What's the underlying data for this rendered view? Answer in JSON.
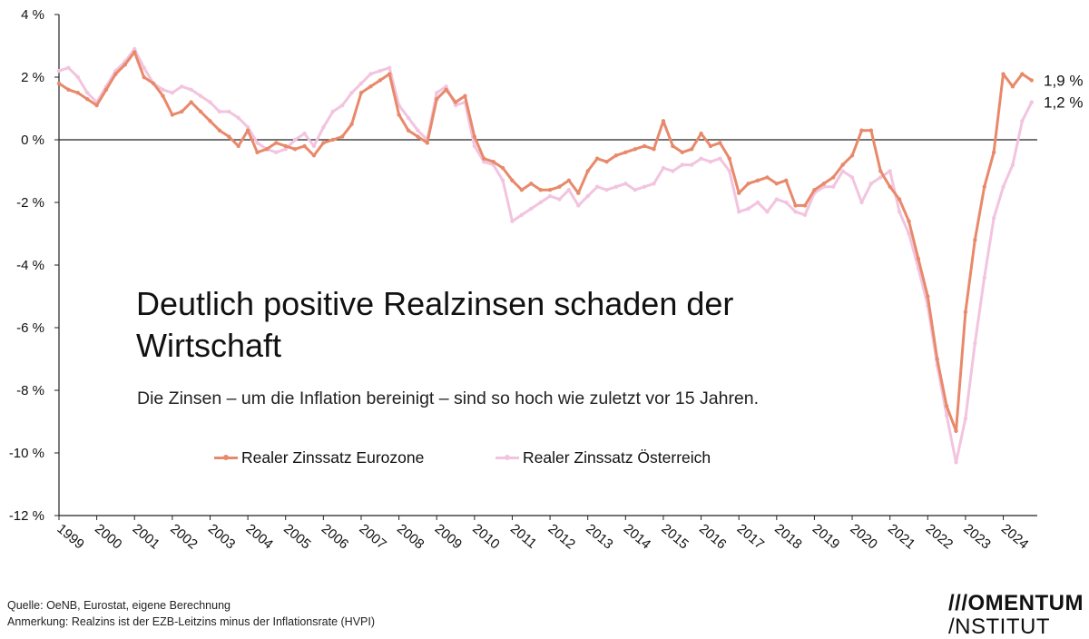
{
  "chart_data": {
    "type": "line",
    "title": "Deutlich positive Realzinsen schaden der Wirtschaft",
    "subtitle": "Die Zinsen – um die Inflation bereinigt – sind so hoch wie zuletzt vor 15 Jahren.",
    "ylim": [
      -12,
      4
    ],
    "yticks": [
      4,
      2,
      0,
      -2,
      -4,
      -6,
      -8,
      -10,
      -12
    ],
    "ytick_labels": [
      "4 %",
      "2 %",
      "0 %",
      "-2 %",
      "-4 %",
      "-6 %",
      "-8 %",
      "-10 %",
      "-12 %"
    ],
    "xlim": [
      1999,
      2024.9
    ],
    "xticks": [
      1999,
      2000,
      2001,
      2002,
      2003,
      2004,
      2005,
      2006,
      2007,
      2008,
      2009,
      2010,
      2011,
      2012,
      2013,
      2014,
      2015,
      2016,
      2017,
      2018,
      2019,
      2020,
      2021,
      2022,
      2023,
      2024
    ],
    "xtick_labels": [
      "1999",
      "2000",
      "2001",
      "2002",
      "2003",
      "2004",
      "2005",
      "2006",
      "2007",
      "2008",
      "2009",
      "2010",
      "2011",
      "2012",
      "2013",
      "2014",
      "2015",
      "2016",
      "2017",
      "2018",
      "2019",
      "2020",
      "2021",
      "2022",
      "2023",
      "2024"
    ],
    "series": [
      {
        "name": "Realer Zinssatz Eurozone",
        "color": "#E8896B",
        "end_label": "1,9 %",
        "x": [
          1999.0,
          1999.25,
          1999.5,
          1999.75,
          2000.0,
          2000.25,
          2000.5,
          2000.75,
          2001.0,
          2001.25,
          2001.5,
          2001.75,
          2002.0,
          2002.25,
          2002.5,
          2002.75,
          2003.0,
          2003.25,
          2003.5,
          2003.75,
          2004.0,
          2004.25,
          2004.5,
          2004.75,
          2005.0,
          2005.25,
          2005.5,
          2005.75,
          2006.0,
          2006.25,
          2006.5,
          2006.75,
          2007.0,
          2007.25,
          2007.5,
          2007.75,
          2008.0,
          2008.25,
          2008.5,
          2008.75,
          2009.0,
          2009.25,
          2009.5,
          2009.75,
          2010.0,
          2010.25,
          2010.5,
          2010.75,
          2011.0,
          2011.25,
          2011.5,
          2011.75,
          2012.0,
          2012.25,
          2012.5,
          2012.75,
          2013.0,
          2013.25,
          2013.5,
          2013.75,
          2014.0,
          2014.25,
          2014.5,
          2014.75,
          2015.0,
          2015.25,
          2015.5,
          2015.75,
          2016.0,
          2016.25,
          2016.5,
          2016.75,
          2017.0,
          2017.25,
          2017.5,
          2017.75,
          2018.0,
          2018.25,
          2018.5,
          2018.75,
          2019.0,
          2019.25,
          2019.5,
          2019.75,
          2020.0,
          2020.25,
          2020.5,
          2020.75,
          2021.0,
          2021.25,
          2021.5,
          2021.75,
          2022.0,
          2022.25,
          2022.5,
          2022.75,
          2023.0,
          2023.25,
          2023.5,
          2023.75,
          2024.0,
          2024.25,
          2024.5,
          2024.75
        ],
        "values": [
          1.8,
          1.6,
          1.5,
          1.3,
          1.1,
          1.6,
          2.1,
          2.4,
          2.8,
          2.0,
          1.8,
          1.4,
          0.8,
          0.9,
          1.2,
          0.9,
          0.6,
          0.3,
          0.1,
          -0.2,
          0.3,
          -0.4,
          -0.3,
          -0.1,
          -0.2,
          -0.3,
          -0.2,
          -0.5,
          -0.1,
          0.0,
          0.1,
          0.5,
          1.5,
          1.7,
          1.9,
          2.1,
          0.8,
          0.3,
          0.1,
          -0.1,
          1.3,
          1.6,
          1.2,
          1.4,
          0.1,
          -0.6,
          -0.7,
          -0.9,
          -1.3,
          -1.6,
          -1.4,
          -1.6,
          -1.6,
          -1.5,
          -1.3,
          -1.7,
          -1.0,
          -0.6,
          -0.7,
          -0.5,
          -0.4,
          -0.3,
          -0.2,
          -0.3,
          0.6,
          -0.2,
          -0.4,
          -0.3,
          0.2,
          -0.2,
          -0.1,
          -0.6,
          -1.7,
          -1.4,
          -1.3,
          -1.2,
          -1.4,
          -1.3,
          -2.1,
          -2.1,
          -1.6,
          -1.4,
          -1.2,
          -0.8,
          -0.5,
          0.3,
          0.3,
          -1.0,
          -1.5,
          -1.9,
          -2.6,
          -3.8,
          -5.0,
          -7.0,
          -8.5,
          -9.3,
          -5.5,
          -3.2,
          -1.5,
          -0.4,
          2.1,
          1.7,
          2.1,
          1.9
        ]
      },
      {
        "name": "Realer Zinssatz Österreich",
        "color": "#F2C4DF",
        "end_label": "1,2 %",
        "x": [
          1999.0,
          1999.25,
          1999.5,
          1999.75,
          2000.0,
          2000.25,
          2000.5,
          2000.75,
          2001.0,
          2001.25,
          2001.5,
          2001.75,
          2002.0,
          2002.25,
          2002.5,
          2002.75,
          2003.0,
          2003.25,
          2003.5,
          2003.75,
          2004.0,
          2004.25,
          2004.5,
          2004.75,
          2005.0,
          2005.25,
          2005.5,
          2005.75,
          2006.0,
          2006.25,
          2006.5,
          2006.75,
          2007.0,
          2007.25,
          2007.5,
          2007.75,
          2008.0,
          2008.25,
          2008.5,
          2008.75,
          2009.0,
          2009.25,
          2009.5,
          2009.75,
          2010.0,
          2010.25,
          2010.5,
          2010.75,
          2011.0,
          2011.25,
          2011.5,
          2011.75,
          2012.0,
          2012.25,
          2012.5,
          2012.75,
          2013.0,
          2013.25,
          2013.5,
          2013.75,
          2014.0,
          2014.25,
          2014.5,
          2014.75,
          2015.0,
          2015.25,
          2015.5,
          2015.75,
          2016.0,
          2016.25,
          2016.5,
          2016.75,
          2017.0,
          2017.25,
          2017.5,
          2017.75,
          2018.0,
          2018.25,
          2018.5,
          2018.75,
          2019.0,
          2019.25,
          2019.5,
          2019.75,
          2020.0,
          2020.25,
          2020.5,
          2020.75,
          2021.0,
          2021.25,
          2021.5,
          2021.75,
          2022.0,
          2022.25,
          2022.5,
          2022.75,
          2023.0,
          2023.25,
          2023.5,
          2023.75,
          2024.0,
          2024.25,
          2024.5,
          2024.75
        ],
        "values": [
          2.2,
          2.3,
          2.0,
          1.5,
          1.2,
          1.7,
          2.2,
          2.5,
          2.9,
          2.3,
          1.8,
          1.6,
          1.5,
          1.7,
          1.6,
          1.4,
          1.2,
          0.9,
          0.9,
          0.7,
          0.4,
          -0.1,
          -0.3,
          -0.4,
          -0.3,
          0.0,
          0.2,
          -0.2,
          0.4,
          0.9,
          1.1,
          1.5,
          1.8,
          2.1,
          2.2,
          2.3,
          1.1,
          0.7,
          0.3,
          0.0,
          1.5,
          1.7,
          1.1,
          1.2,
          -0.2,
          -0.7,
          -0.8,
          -1.3,
          -2.6,
          -2.4,
          -2.2,
          -2.0,
          -1.8,
          -1.9,
          -1.6,
          -2.1,
          -1.8,
          -1.5,
          -1.6,
          -1.5,
          -1.4,
          -1.6,
          -1.5,
          -1.4,
          -0.9,
          -1.0,
          -0.8,
          -0.8,
          -0.6,
          -0.7,
          -0.6,
          -1.0,
          -2.3,
          -2.2,
          -2.0,
          -2.3,
          -1.9,
          -2.0,
          -2.3,
          -2.4,
          -1.7,
          -1.5,
          -1.5,
          -1.0,
          -1.2,
          -2.0,
          -1.4,
          -1.2,
          -1.0,
          -2.3,
          -3.0,
          -4.1,
          -5.3,
          -7.2,
          -8.8,
          -10.3,
          -8.9,
          -6.5,
          -4.4,
          -2.5,
          -1.5,
          -0.8,
          0.6,
          1.2
        ]
      }
    ]
  },
  "legend": {
    "eurozone_label": "Realer Zinssatz Eurozone",
    "austria_label": "Realer Zinssatz Österreich",
    "eurozone_color": "#E8896B",
    "austria_color": "#F2C4DF"
  },
  "footer": {
    "source": "Quelle: OeNB, Eurostat, eigene Berechnung",
    "note": "Anmerkung: Realzins ist der EZB-Leitzins minus der Inflationsrate (HVPI)"
  },
  "logo": {
    "line1": "///OMENTUM",
    "line2": "/NSTITUT"
  }
}
